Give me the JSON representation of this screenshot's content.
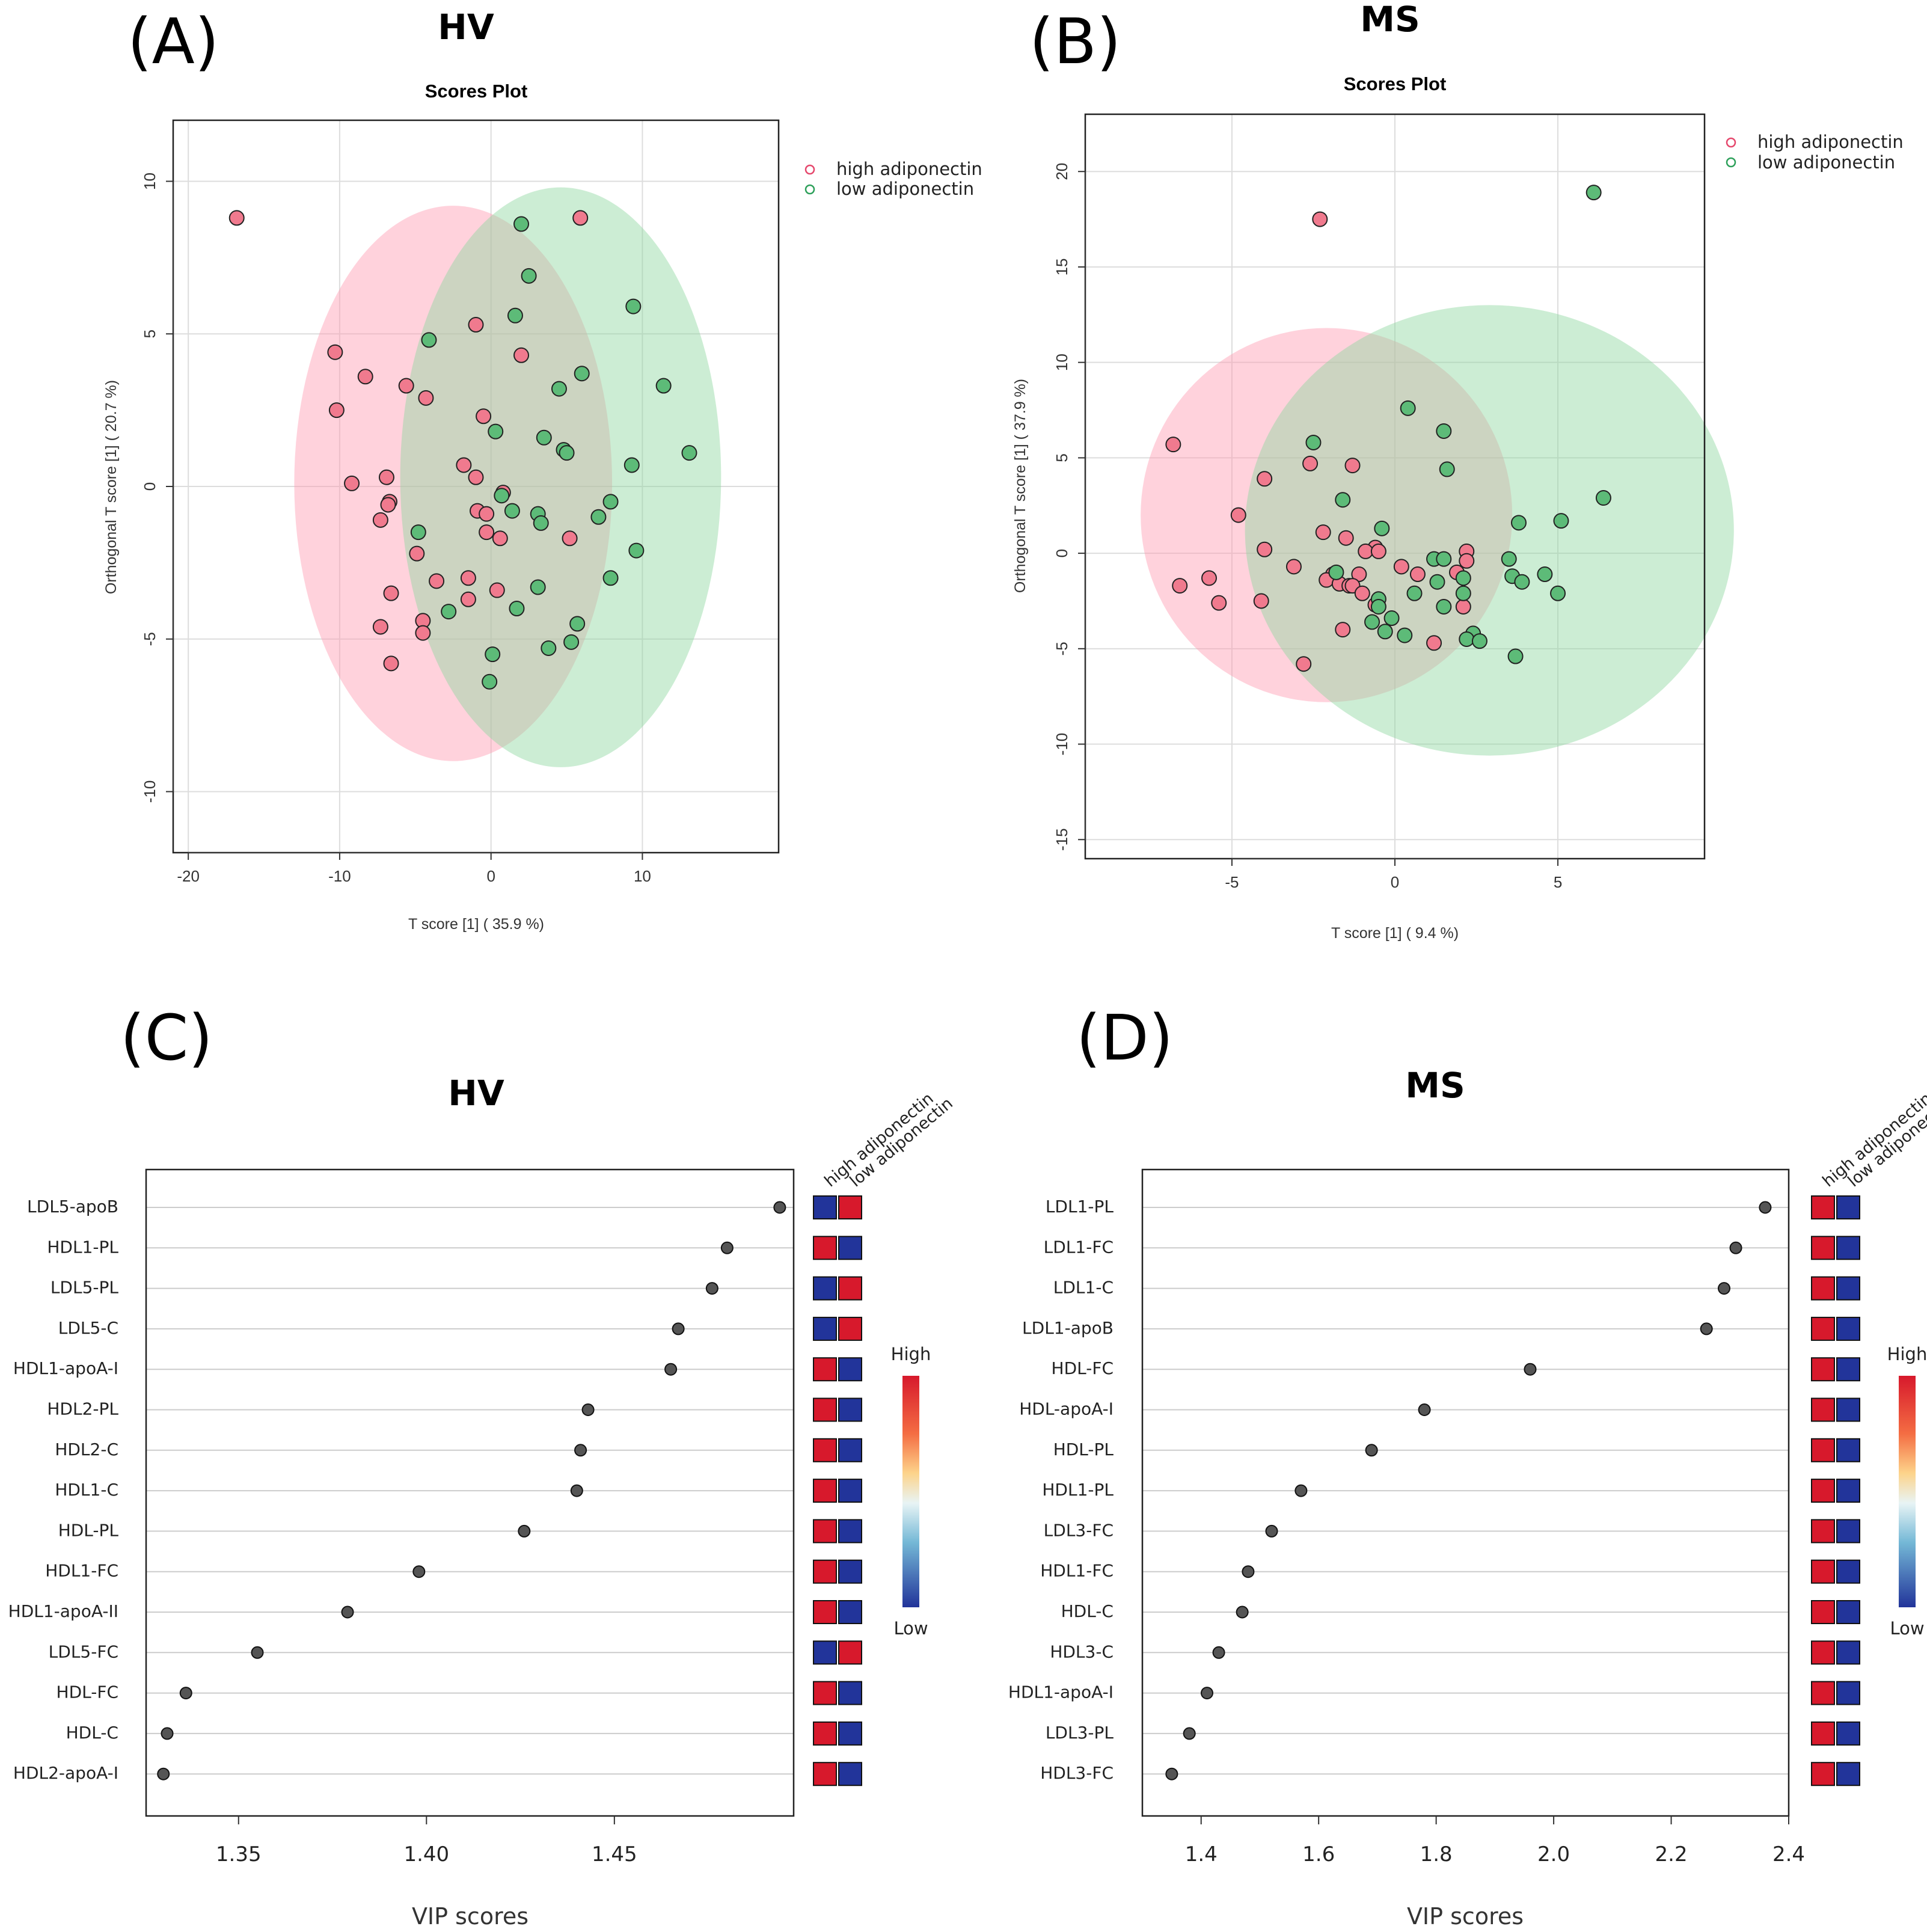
{
  "colors": {
    "high_fill": "#f07a8e",
    "low_fill": "#5dbb78",
    "high_ellipse": "#ff9cb2",
    "low_ellipse": "#8fd6a0",
    "red_cell": "#d7192c",
    "blue_cell": "#22349a",
    "dot": "#555555"
  },
  "chart_data": [
    {
      "panel": "A",
      "type": "scatter",
      "group": "HV",
      "title": "Scores Plot",
      "xlabel": "T score [1] ( 35.9 %)",
      "ylabel": "Orthogonal T score [1] ( 20.7 %)",
      "xlim": [
        -21,
        19
      ],
      "ylim": [
        -12,
        12
      ],
      "xticks": [
        -20,
        -10,
        0,
        10
      ],
      "yticks": [
        -10,
        -5,
        0,
        5,
        10
      ],
      "legend": [
        "high adiponectin",
        "low adiponectin"
      ],
      "ellipses": [
        {
          "series": "high adiponectin",
          "cx": -2.5,
          "cy": 0.1,
          "rx": 10.5,
          "ry": 9.1
        },
        {
          "series": "low adiponectin",
          "cx": 4.6,
          "cy": 0.3,
          "rx": 10.6,
          "ry": 9.5
        }
      ],
      "series": [
        {
          "name": "high adiponectin",
          "points": [
            [
              -16.8,
              8.8
            ],
            [
              5.9,
              8.8
            ],
            [
              -10.3,
              4.4
            ],
            [
              -8.3,
              3.6
            ],
            [
              -5.6,
              3.3
            ],
            [
              -4.3,
              2.9
            ],
            [
              -1.0,
              5.3
            ],
            [
              2.0,
              4.3
            ],
            [
              -10.2,
              2.5
            ],
            [
              -0.5,
              2.3
            ],
            [
              -9.2,
              0.1
            ],
            [
              -6.9,
              0.3
            ],
            [
              -1.8,
              0.7
            ],
            [
              -6.7,
              -0.5
            ],
            [
              -6.8,
              -0.6
            ],
            [
              -7.3,
              -1.1
            ],
            [
              -0.9,
              -0.8
            ],
            [
              -0.3,
              -0.9
            ],
            [
              0.8,
              -0.2
            ],
            [
              -0.3,
              -1.5
            ],
            [
              0.6,
              -1.7
            ],
            [
              5.2,
              -1.7
            ],
            [
              -4.9,
              -2.2
            ],
            [
              -3.6,
              -3.1
            ],
            [
              -1.5,
              -3.0
            ],
            [
              0.4,
              -3.4
            ],
            [
              -1.5,
              -3.7
            ],
            [
              -6.6,
              -3.5
            ],
            [
              -4.5,
              -4.4
            ],
            [
              -7.3,
              -4.6
            ],
            [
              -4.5,
              -4.8
            ],
            [
              -6.6,
              -5.8
            ],
            [
              -1.0,
              0.3
            ]
          ]
        },
        {
          "name": "low adiponectin",
          "points": [
            [
              2.0,
              8.6
            ],
            [
              2.5,
              6.9
            ],
            [
              9.4,
              5.9
            ],
            [
              1.6,
              5.6
            ],
            [
              -4.1,
              4.8
            ],
            [
              6.0,
              3.7
            ],
            [
              4.5,
              3.2
            ],
            [
              11.4,
              3.3
            ],
            [
              13.1,
              1.1
            ],
            [
              0.3,
              1.8
            ],
            [
              3.5,
              1.6
            ],
            [
              4.8,
              1.2
            ],
            [
              5.0,
              1.1
            ],
            [
              9.3,
              0.7
            ],
            [
              0.7,
              -0.3
            ],
            [
              1.4,
              -0.8
            ],
            [
              7.9,
              -0.5
            ],
            [
              7.1,
              -1.0
            ],
            [
              3.1,
              -0.9
            ],
            [
              3.3,
              -1.2
            ],
            [
              -4.8,
              -1.5
            ],
            [
              9.6,
              -2.1
            ],
            [
              7.9,
              -3.0
            ],
            [
              3.1,
              -3.3
            ],
            [
              1.7,
              -4.0
            ],
            [
              -2.8,
              -4.1
            ],
            [
              5.7,
              -4.5
            ],
            [
              5.3,
              -5.1
            ],
            [
              3.8,
              -5.3
            ],
            [
              0.1,
              -5.5
            ],
            [
              -0.1,
              -6.4
            ]
          ]
        }
      ]
    },
    {
      "panel": "B",
      "type": "scatter",
      "group": "MS",
      "title": "Scores Plot",
      "xlabel": "T score [1] ( 9.4 %)",
      "ylabel": "Orthogonal T score [1] ( 37.9 %)",
      "xlim": [
        -9.5,
        9.5
      ],
      "ylim": [
        -16,
        23
      ],
      "xticks": [
        -5,
        0,
        5
      ],
      "yticks": [
        -15,
        -10,
        -5,
        0,
        5,
        10,
        15,
        20
      ],
      "legend": [
        "high adiponectin",
        "low adiponectin"
      ],
      "ellipses": [
        {
          "series": "high adiponectin",
          "cx": -2.1,
          "cy": 2.0,
          "rx": 5.7,
          "ry": 9.8
        },
        {
          "series": "low adiponectin",
          "cx": 2.9,
          "cy": 1.2,
          "rx": 7.5,
          "ry": 11.8
        }
      ],
      "series": [
        {
          "name": "high adiponectin",
          "points": [
            [
              -2.3,
              17.5
            ],
            [
              -6.8,
              5.7
            ],
            [
              -2.6,
              4.7
            ],
            [
              -1.3,
              4.6
            ],
            [
              -4.0,
              3.9
            ],
            [
              -4.8,
              2.0
            ],
            [
              -2.2,
              1.1
            ],
            [
              -1.5,
              0.8
            ],
            [
              -4.0,
              0.2
            ],
            [
              -0.6,
              0.3
            ],
            [
              -0.9,
              0.1
            ],
            [
              -0.5,
              0.1
            ],
            [
              2.2,
              0.1
            ],
            [
              2.2,
              -0.4
            ],
            [
              0.2,
              -0.7
            ],
            [
              -3.1,
              -0.7
            ],
            [
              -1.9,
              -1.1
            ],
            [
              -1.1,
              -1.1
            ],
            [
              0.7,
              -1.1
            ],
            [
              1.9,
              -1.0
            ],
            [
              -6.6,
              -1.7
            ],
            [
              -5.7,
              -1.3
            ],
            [
              -2.1,
              -1.4
            ],
            [
              -1.7,
              -1.6
            ],
            [
              -1.4,
              -1.7
            ],
            [
              -1.3,
              -1.7
            ],
            [
              -1.0,
              -2.1
            ],
            [
              -0.6,
              -2.7
            ],
            [
              -4.1,
              -2.5
            ],
            [
              -5.4,
              -2.6
            ],
            [
              2.1,
              -2.8
            ],
            [
              -1.6,
              -4.0
            ],
            [
              1.2,
              -4.7
            ],
            [
              -2.8,
              -5.8
            ]
          ]
        },
        {
          "name": "low adiponectin",
          "points": [
            [
              6.1,
              18.9
            ],
            [
              0.4,
              7.6
            ],
            [
              1.5,
              6.4
            ],
            [
              -2.5,
              5.8
            ],
            [
              1.6,
              4.4
            ],
            [
              6.4,
              2.9
            ],
            [
              -1.6,
              2.8
            ],
            [
              3.8,
              1.6
            ],
            [
              5.1,
              1.7
            ],
            [
              -0.4,
              1.3
            ],
            [
              1.2,
              -0.3
            ],
            [
              1.5,
              -0.3
            ],
            [
              3.5,
              -0.3
            ],
            [
              -1.8,
              -1.0
            ],
            [
              4.6,
              -1.1
            ],
            [
              2.1,
              -1.3
            ],
            [
              3.6,
              -1.2
            ],
            [
              1.3,
              -1.5
            ],
            [
              3.9,
              -1.5
            ],
            [
              2.1,
              -2.1
            ],
            [
              5.0,
              -2.1
            ],
            [
              0.6,
              -2.1
            ],
            [
              -0.5,
              -2.4
            ],
            [
              -0.5,
              -2.8
            ],
            [
              1.5,
              -2.8
            ],
            [
              -0.1,
              -3.4
            ],
            [
              -0.7,
              -3.6
            ],
            [
              -0.3,
              -4.1
            ],
            [
              0.3,
              -4.3
            ],
            [
              2.4,
              -4.2
            ],
            [
              2.2,
              -4.5
            ],
            [
              2.6,
              -4.6
            ],
            [
              3.7,
              -5.4
            ]
          ]
        }
      ]
    },
    {
      "panel": "C",
      "type": "dot",
      "group": "HV",
      "xlabel": "VIP scores",
      "xlim": [
        1.3254,
        1.4977
      ],
      "xticks": [
        1.35,
        1.4,
        1.45
      ],
      "xtick_labels": [
        "1.35",
        "1.40",
        "1.45"
      ],
      "column_headers": [
        "high adiponectin",
        "low adiponectin"
      ],
      "heat_legend": {
        "high": "High",
        "low": "Low"
      },
      "features": [
        {
          "label": "LDL5-apoB",
          "vip": 1.494,
          "high": "low",
          "low": "high"
        },
        {
          "label": "HDL1-PL",
          "vip": 1.48,
          "high": "high",
          "low": "low"
        },
        {
          "label": "LDL5-PL",
          "vip": 1.476,
          "high": "low",
          "low": "high"
        },
        {
          "label": "LDL5-C",
          "vip": 1.467,
          "high": "low",
          "low": "high"
        },
        {
          "label": "HDL1-apoA-I",
          "vip": 1.465,
          "high": "high",
          "low": "low"
        },
        {
          "label": "HDL2-PL",
          "vip": 1.443,
          "high": "high",
          "low": "low"
        },
        {
          "label": "HDL2-C",
          "vip": 1.441,
          "high": "high",
          "low": "low"
        },
        {
          "label": "HDL1-C",
          "vip": 1.44,
          "high": "high",
          "low": "low"
        },
        {
          "label": "HDL-PL",
          "vip": 1.426,
          "high": "high",
          "low": "low"
        },
        {
          "label": "HDL1-FC",
          "vip": 1.398,
          "high": "high",
          "low": "low"
        },
        {
          "label": "HDL1-apoA-II",
          "vip": 1.379,
          "high": "high",
          "low": "low"
        },
        {
          "label": "LDL5-FC",
          "vip": 1.355,
          "high": "low",
          "low": "high"
        },
        {
          "label": "HDL-FC",
          "vip": 1.336,
          "high": "high",
          "low": "low"
        },
        {
          "label": "HDL-C",
          "vip": 1.331,
          "high": "high",
          "low": "low"
        },
        {
          "label": "HDL2-apoA-I",
          "vip": 1.33,
          "high": "high",
          "low": "low"
        }
      ]
    },
    {
      "panel": "D",
      "type": "dot",
      "group": "MS",
      "xlabel": "VIP scores",
      "xlim": [
        1.3,
        2.4
      ],
      "xticks": [
        1.4,
        1.6,
        1.8,
        2.0,
        2.2,
        2.4
      ],
      "xtick_labels": [
        "1.4",
        "1.6",
        "1.8",
        "2.0",
        "2.2",
        "2.4"
      ],
      "column_headers": [
        "high adiponectin",
        "low adiponectin"
      ],
      "heat_legend": {
        "high": "High",
        "low": "Low"
      },
      "features": [
        {
          "label": "LDL1-PL",
          "vip": 2.36,
          "high": "high",
          "low": "low"
        },
        {
          "label": "LDL1-FC",
          "vip": 2.31,
          "high": "high",
          "low": "low"
        },
        {
          "label": "LDL1-C",
          "vip": 2.29,
          "high": "high",
          "low": "low"
        },
        {
          "label": "LDL1-apoB",
          "vip": 2.26,
          "high": "high",
          "low": "low"
        },
        {
          "label": "HDL-FC",
          "vip": 1.96,
          "high": "high",
          "low": "low"
        },
        {
          "label": "HDL-apoA-I",
          "vip": 1.78,
          "high": "high",
          "low": "low"
        },
        {
          "label": "HDL-PL",
          "vip": 1.69,
          "high": "high",
          "low": "low"
        },
        {
          "label": "HDL1-PL",
          "vip": 1.57,
          "high": "high",
          "low": "low"
        },
        {
          "label": "LDL3-FC",
          "vip": 1.52,
          "high": "high",
          "low": "low"
        },
        {
          "label": "HDL1-FC",
          "vip": 1.48,
          "high": "high",
          "low": "low"
        },
        {
          "label": "HDL-C",
          "vip": 1.47,
          "high": "high",
          "low": "low"
        },
        {
          "label": "HDL3-C",
          "vip": 1.43,
          "high": "high",
          "low": "low"
        },
        {
          "label": "HDL1-apoA-I",
          "vip": 1.41,
          "high": "high",
          "low": "low"
        },
        {
          "label": "LDL3-PL",
          "vip": 1.38,
          "high": "high",
          "low": "low"
        },
        {
          "label": "HDL3-FC",
          "vip": 1.35,
          "high": "high",
          "low": "low"
        }
      ]
    }
  ]
}
